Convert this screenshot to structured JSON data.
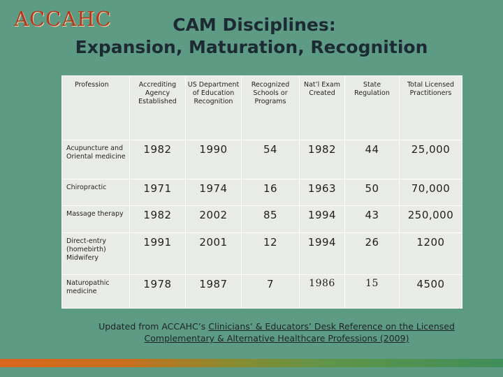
{
  "logo": {
    "text": "ACCAHC"
  },
  "title": {
    "line1": "CAM Disciplines:",
    "line2": "Expansion, Maturation, Recognition"
  },
  "table": {
    "headers": [
      "Profession",
      "Accrediting Agency Established",
      "US Department of Education Recognition",
      "Recognized Schools or Programs",
      "Nat’l Exam Created",
      "State Regulation",
      "Total Licensed Practitioners"
    ],
    "rows": [
      [
        "Acupuncture and Oriental medicine",
        "1982",
        "1990",
        "54",
        "1982",
        "44",
        "25,000"
      ],
      [
        "Chiropractic",
        "1971",
        "1974",
        "16",
        "1963",
        "50",
        "70,000"
      ],
      [
        "Massage therapy",
        "1982",
        "2002",
        "85",
        "1994",
        "43",
        "250,000"
      ],
      [
        "Direct-entry (homebirth) Midwifery",
        "1991",
        "2001",
        "12",
        "1994",
        "26",
        "1200"
      ],
      [
        "Naturopathic medicine",
        "1978",
        "1987",
        "7",
        "1986",
        "15",
        "4500"
      ]
    ]
  },
  "footnote": {
    "prefix": "Updated from ACCAHC’s ",
    "reference": "Clinicians’ & Educators’ Desk Reference on the Licensed Complementary & Alternative Healthcare Professions (2009)"
  },
  "colors": {
    "background": "#5e9b84",
    "table_background": "#e9ebe6",
    "logo": "#b23a1f",
    "bar_start": "#d9661e",
    "bar_end": "#3f8e5a"
  }
}
